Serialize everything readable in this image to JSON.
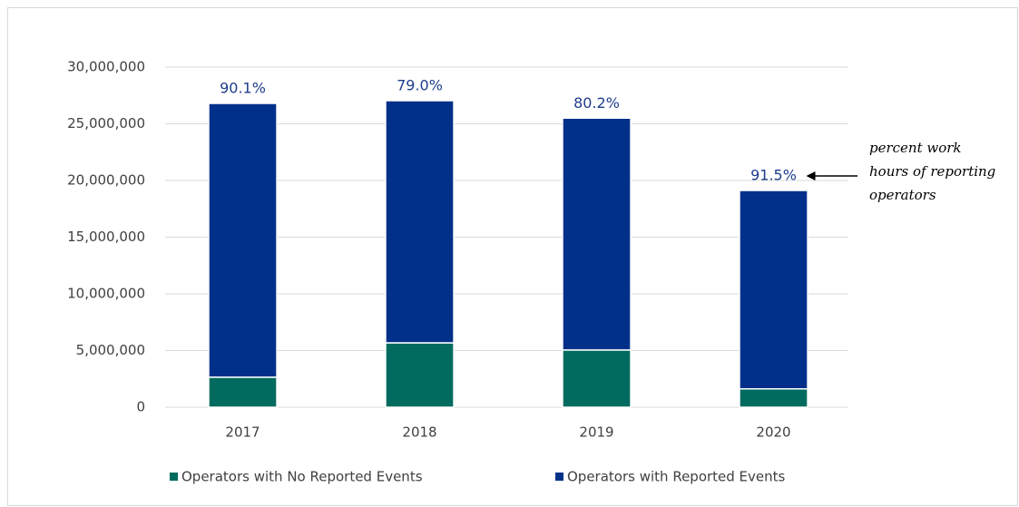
{
  "chart_data": {
    "type": "stacked_bar",
    "categories": [
      "2017",
      "2018",
      "2019",
      "2020"
    ],
    "series": [
      {
        "name": "Operators with No Reported Events",
        "color": "#006b5e",
        "values": [
          2650000,
          5680000,
          5050000,
          1620000
        ]
      },
      {
        "name": "Operators with Reported Events",
        "color": "#00308a",
        "values": [
          24150000,
          21360000,
          20450000,
          17500000
        ]
      }
    ],
    "annotations": [
      "90.1%",
      "79.0%",
      "80.2%",
      "91.5%"
    ],
    "note_lines": [
      "percent work",
      "hours of reporting",
      "operators"
    ],
    "ylim": [
      0,
      30000000
    ],
    "yticks": [
      0,
      {
        "value": 5000000,
        "label": "5,000,000"
      },
      {
        "value": 10000000,
        "label": "10,000,000"
      },
      {
        "value": 15000000,
        "label": "15,000,000"
      },
      {
        "value": 20000000,
        "label": "20,000,000"
      },
      {
        "value": 25000000,
        "label": "25,000,000"
      },
      {
        "value": 30000000,
        "label": "30,000,000"
      }
    ],
    "grid": true,
    "legend": "bottom"
  }
}
